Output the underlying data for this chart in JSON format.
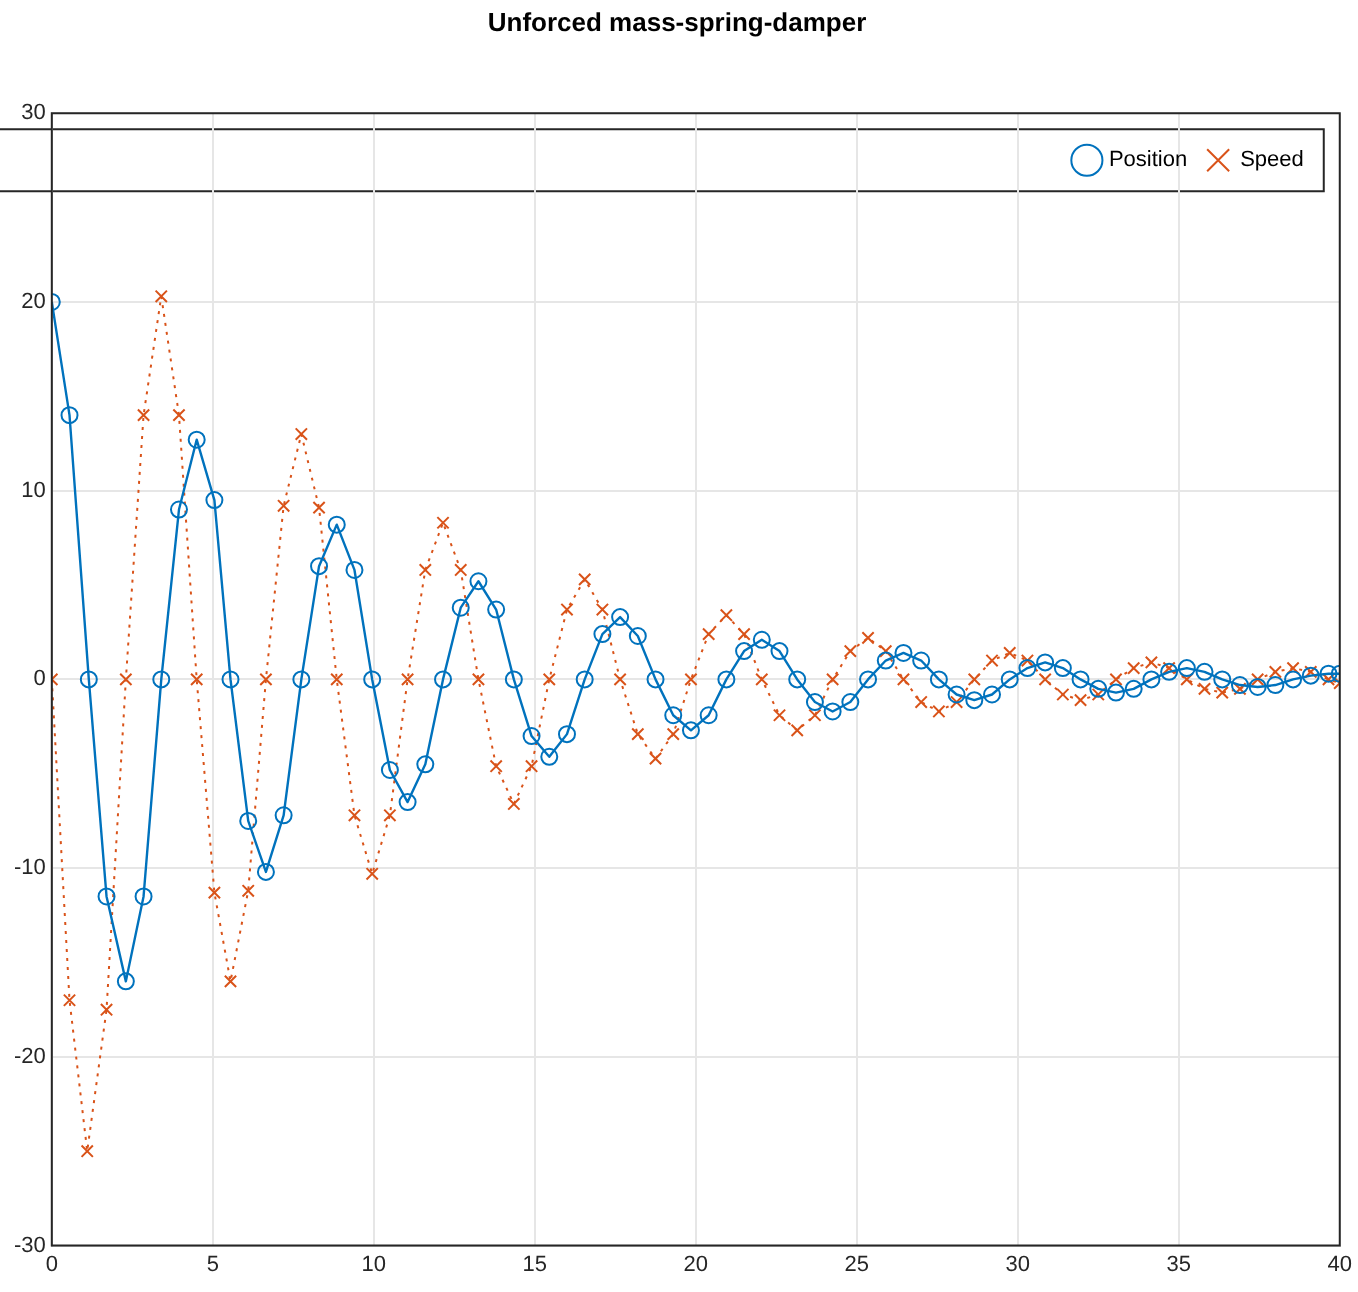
{
  "chart_data": {
    "type": "line",
    "title": "Unforced mass-spring-damper",
    "xlim": [
      0,
      40
    ],
    "xticks": [
      0,
      5,
      10,
      15,
      20,
      25,
      30,
      35,
      40
    ],
    "ylim": [
      -30,
      30
    ],
    "yticks": [
      -30,
      -20,
      -10,
      0,
      10,
      20,
      30
    ],
    "grid": true,
    "legend": "top right",
    "series": [
      {
        "name": "Position",
        "color": "#0072bd",
        "marker": "circle",
        "line_style": "solid",
        "x": [
          0,
          0.55,
          1.15,
          1.7,
          2.3,
          2.85,
          3.4,
          3.95,
          4.5,
          5.05,
          5.55,
          6.1,
          6.65,
          7.2,
          7.75,
          8.3,
          8.85,
          9.4,
          9.95,
          10.5,
          11.05,
          11.6,
          12.15,
          12.7,
          13.25,
          13.8,
          14.35,
          14.9,
          15.45,
          16,
          16.55,
          17.1,
          17.65,
          18.2,
          18.75,
          19.3,
          19.85,
          20.4,
          20.95,
          21.5,
          22.05,
          22.6,
          23.15,
          23.7,
          24.25,
          24.8,
          25.35,
          25.9,
          26.45,
          27,
          27.55,
          28.1,
          28.65,
          29.2,
          29.75,
          30.3,
          30.85,
          31.4,
          31.95,
          32.5,
          33.05,
          33.6,
          34.15,
          34.7,
          35.25,
          35.8,
          36.35,
          36.9,
          37.45,
          38,
          38.55,
          39.1,
          39.65,
          40
        ],
        "values": [
          20,
          14,
          0,
          -11.5,
          -16,
          -11.5,
          0,
          9,
          12.7,
          9.5,
          0,
          -7.5,
          -10.2,
          -7.2,
          0,
          6,
          8.2,
          5.8,
          0,
          -4.8,
          -6.5,
          -4.5,
          0,
          3.8,
          5.2,
          3.7,
          0,
          -3,
          -4.1,
          -2.9,
          0,
          2.4,
          3.3,
          2.3,
          0,
          -1.9,
          -2.7,
          -1.9,
          0,
          1.5,
          2.1,
          1.5,
          0,
          -1.2,
          -1.7,
          -1.2,
          0,
          1,
          1.4,
          1,
          0,
          -0.8,
          -1.1,
          -0.8,
          0,
          0.6,
          0.9,
          0.6,
          0,
          -0.5,
          -0.7,
          -0.5,
          0,
          0.4,
          0.6,
          0.4,
          0,
          -0.3,
          -0.4,
          -0.3,
          0,
          0.2,
          0.3,
          0.3
        ]
      },
      {
        "name": "Speed",
        "color": "#d95319",
        "marker": "cross",
        "line_style": "dotted",
        "x": [
          0,
          0.55,
          1.1,
          1.7,
          2.3,
          2.85,
          3.4,
          3.95,
          4.5,
          5.05,
          5.55,
          6.1,
          6.65,
          7.2,
          7.75,
          8.3,
          8.85,
          9.4,
          9.95,
          10.5,
          11.05,
          11.6,
          12.15,
          12.7,
          13.25,
          13.8,
          14.35,
          14.9,
          15.45,
          16,
          16.55,
          17.1,
          17.65,
          18.2,
          18.75,
          19.3,
          19.85,
          20.4,
          20.95,
          21.5,
          22.05,
          22.6,
          23.15,
          23.7,
          24.25,
          24.8,
          25.35,
          25.9,
          26.45,
          27,
          27.55,
          28.1,
          28.65,
          29.2,
          29.75,
          30.3,
          30.85,
          31.4,
          31.95,
          32.5,
          33.05,
          33.6,
          34.15,
          34.7,
          35.25,
          35.8,
          36.35,
          36.9,
          37.45,
          38,
          38.55,
          39.1,
          39.65,
          40
        ],
        "values": [
          0,
          -17,
          -25,
          -17.5,
          0,
          14,
          20.3,
          14,
          0,
          -11.3,
          -16,
          -11.2,
          0,
          9.2,
          13,
          9.1,
          0,
          -7.2,
          -10.3,
          -7.2,
          0,
          5.8,
          8.3,
          5.8,
          0,
          -4.6,
          -6.6,
          -4.6,
          0,
          3.7,
          5.3,
          3.7,
          0,
          -2.9,
          -4.2,
          -2.9,
          0,
          2.4,
          3.4,
          2.4,
          0,
          -1.9,
          -2.7,
          -1.9,
          0,
          1.5,
          2.2,
          1.5,
          0,
          -1.2,
          -1.7,
          -1.2,
          0,
          1,
          1.4,
          1,
          0,
          -0.8,
          -1.1,
          -0.8,
          0,
          0.6,
          0.9,
          0.6,
          0,
          -0.5,
          -0.7,
          -0.5,
          0,
          0.4,
          0.6,
          0.4,
          0,
          -0.2
        ]
      }
    ]
  }
}
